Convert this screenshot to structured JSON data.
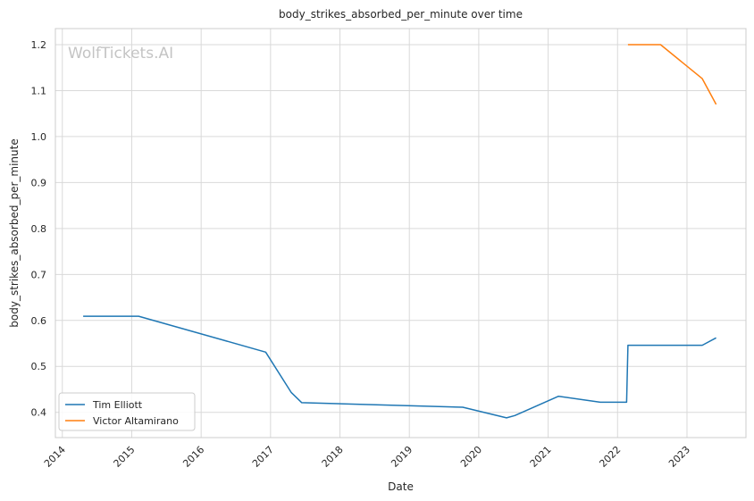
{
  "chart_data": {
    "type": "line",
    "title": "body_strikes_absorbed_per_minute over time",
    "xlabel": "Date",
    "ylabel": "body_strikes_absorbed_per_minute",
    "watermark": "WolfTickets.AI",
    "xlim": [
      2013.9,
      2023.85
    ],
    "ylim": [
      0.345,
      1.235
    ],
    "x_ticks": [
      2014,
      2015,
      2016,
      2017,
      2018,
      2019,
      2020,
      2021,
      2022,
      2023
    ],
    "y_ticks": [
      0.4,
      0.5,
      0.6,
      0.7,
      0.8,
      0.9,
      1.0,
      1.1,
      1.2
    ],
    "y_tick_labels": [
      "0.4",
      "0.5",
      "0.6",
      "0.7",
      "0.8",
      "0.9",
      "1.0",
      "1.1",
      "1.2"
    ],
    "grid": true,
    "legend_position": "lower-left",
    "series": [
      {
        "name": "Tim Elliott",
        "color": "#1f77b4",
        "x": [
          2014.3,
          2015.1,
          2016.93,
          2017.3,
          2017.45,
          2019.77,
          2020.4,
          2020.52,
          2021.15,
          2021.75,
          2022.13,
          2022.15,
          2023.22,
          2023.42
        ],
        "y": [
          0.609,
          0.609,
          0.531,
          0.443,
          0.421,
          0.411,
          0.388,
          0.393,
          0.435,
          0.422,
          0.422,
          0.546,
          0.546,
          0.562
        ]
      },
      {
        "name": "Victor Altamirano",
        "color": "#ff7f0e",
        "x": [
          2022.15,
          2022.62,
          2023.22,
          2023.42
        ],
        "y": [
          1.2,
          1.2,
          1.126,
          1.07
        ]
      }
    ]
  }
}
